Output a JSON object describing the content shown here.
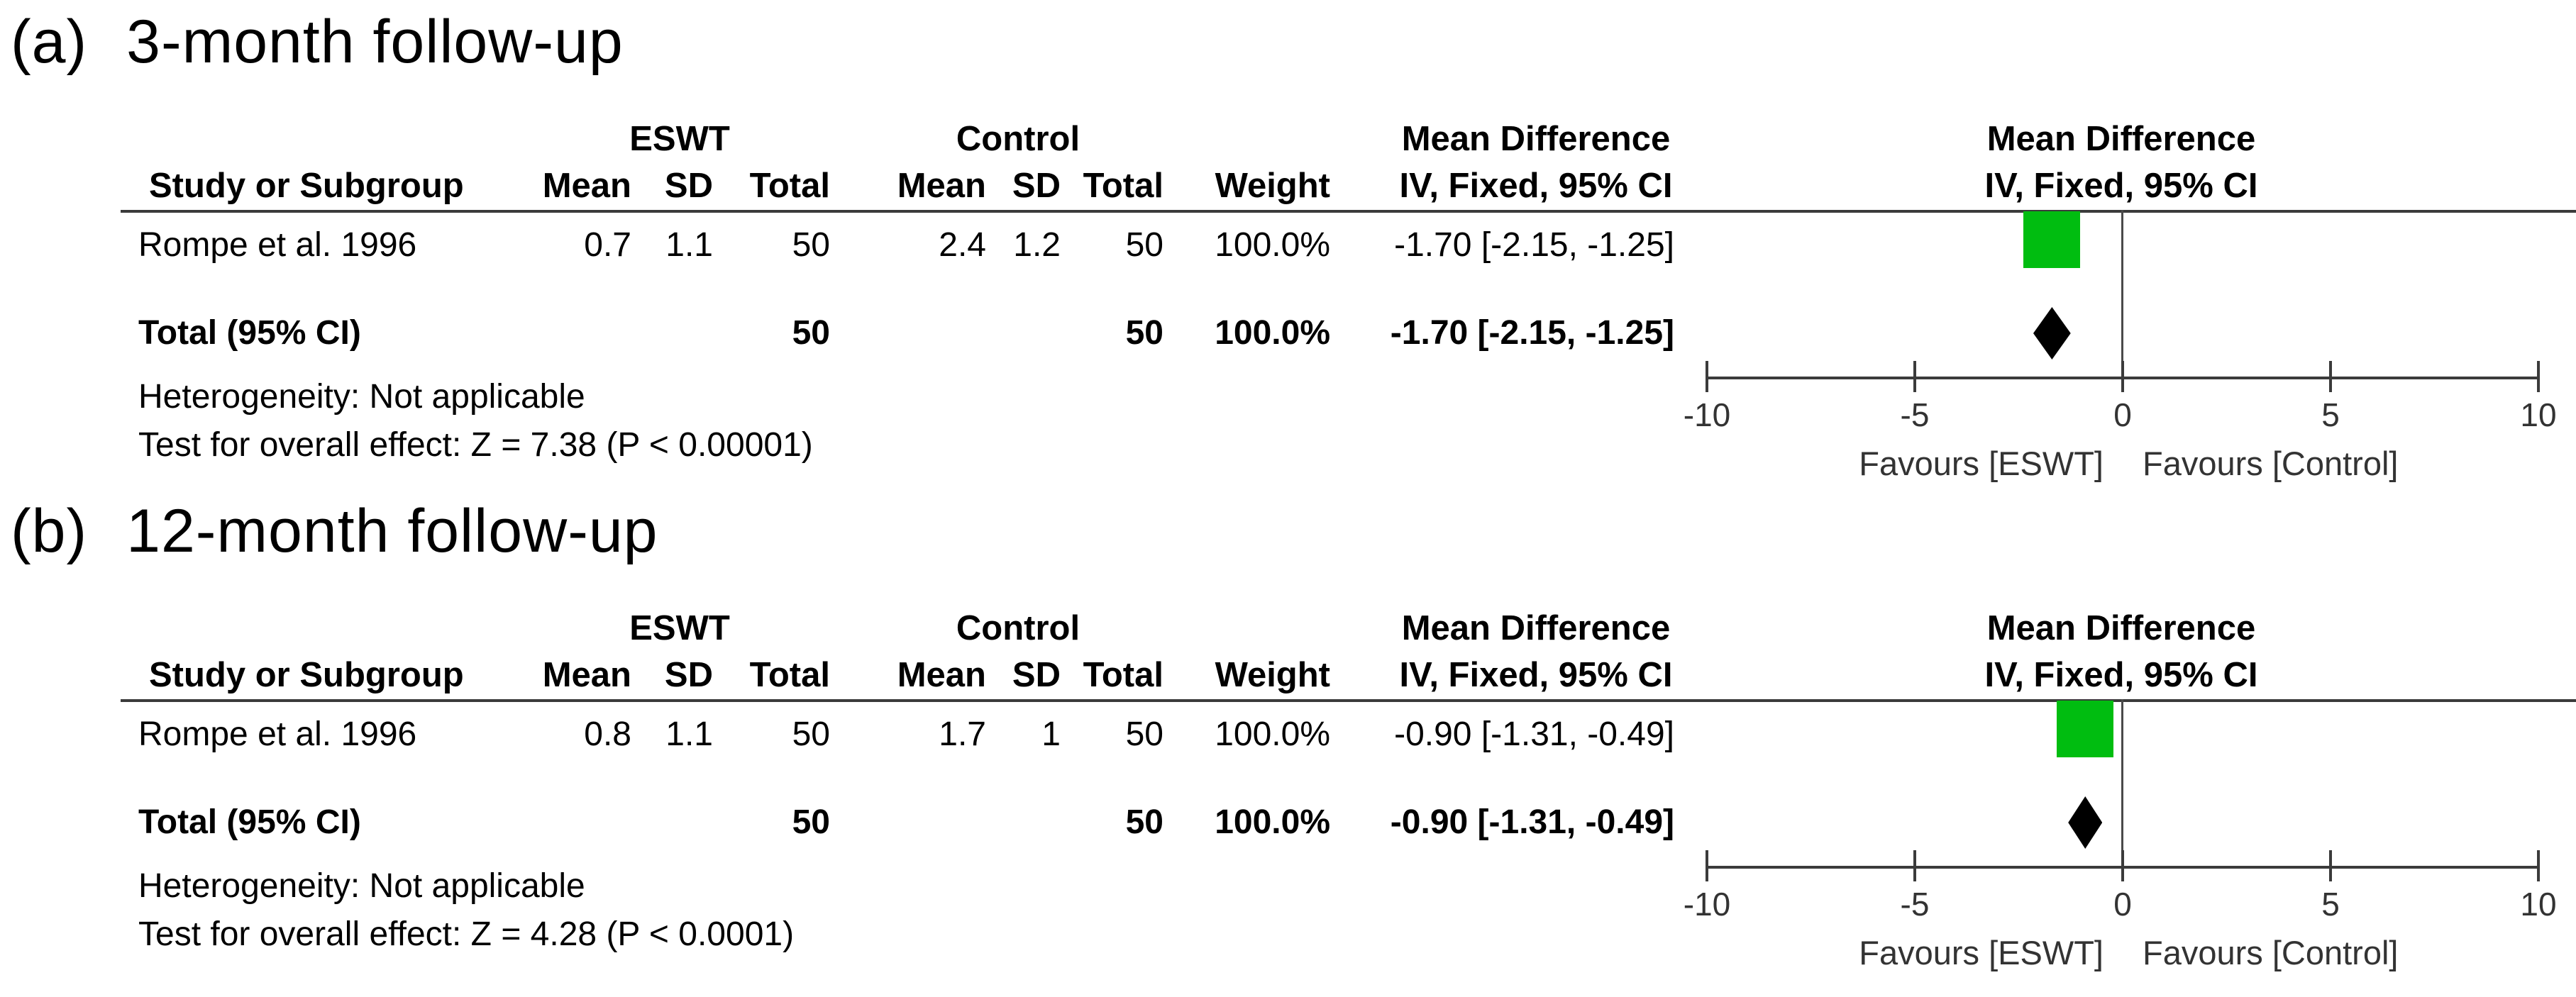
{
  "colors": {
    "study_square": "#00bd10",
    "total_diamond": "#000000",
    "rule": "#3b3b3b"
  },
  "chart_data": [
    {
      "type": "forest",
      "panel_label": "(a)",
      "title": "3-month follow-up",
      "headers": {
        "study": "Study or Subgroup",
        "group1": "ESWT",
        "group2": "Control",
        "mean": "Mean",
        "sd": "SD",
        "total": "Total",
        "weight": "Weight",
        "effect": "Mean Difference",
        "method": "IV, Fixed, 95% CI"
      },
      "studies": [
        {
          "name": "Rompe et al. 1996",
          "eswt": {
            "mean": 0.7,
            "sd": 1.1,
            "total": 50
          },
          "control": {
            "mean": 2.4,
            "sd": 1.2,
            "total": 50
          },
          "weight": "100.0%",
          "md": -1.7,
          "ci_low": -2.15,
          "ci_high": -1.25,
          "ci_text": "-1.70 [-2.15, -1.25]"
        }
      ],
      "total": {
        "label": "Total (95% CI)",
        "eswt_total": 50,
        "control_total": 50,
        "weight": "100.0%",
        "md": -1.7,
        "ci_low": -2.15,
        "ci_high": -1.25,
        "ci_text": "-1.70 [-2.15, -1.25]"
      },
      "heterogeneity": "Heterogeneity: Not applicable",
      "overall": "Test for overall effect: Z = 7.38 (P < 0.00001)",
      "axis": {
        "xlim": [
          -10,
          10
        ],
        "ticks": [
          -10,
          -5,
          0,
          5,
          10
        ],
        "left_label": "Favours [ESWT]",
        "right_label": "Favours [Control]"
      }
    },
    {
      "type": "forest",
      "panel_label": "(b)",
      "title": "12-month follow-up",
      "headers": {
        "study": "Study or Subgroup",
        "group1": "ESWT",
        "group2": "Control",
        "mean": "Mean",
        "sd": "SD",
        "total": "Total",
        "weight": "Weight",
        "effect": "Mean Difference",
        "method": "IV, Fixed, 95% CI"
      },
      "studies": [
        {
          "name": "Rompe et al. 1996",
          "eswt": {
            "mean": 0.8,
            "sd": 1.1,
            "total": 50
          },
          "control": {
            "mean": 1.7,
            "sd": 1,
            "total": 50
          },
          "weight": "100.0%",
          "md": -0.9,
          "ci_low": -1.31,
          "ci_high": -0.49,
          "ci_text": "-0.90 [-1.31, -0.49]"
        }
      ],
      "total": {
        "label": "Total (95% CI)",
        "eswt_total": 50,
        "control_total": 50,
        "weight": "100.0%",
        "md": -0.9,
        "ci_low": -1.31,
        "ci_high": -0.49,
        "ci_text": "-0.90 [-1.31, -0.49]"
      },
      "heterogeneity": "Heterogeneity: Not applicable",
      "overall": "Test for overall effect: Z = 4.28 (P < 0.0001)",
      "axis": {
        "xlim": [
          -10,
          10
        ],
        "ticks": [
          -10,
          -5,
          0,
          5,
          10
        ],
        "left_label": "Favours [ESWT]",
        "right_label": "Favours [Control]"
      }
    }
  ]
}
